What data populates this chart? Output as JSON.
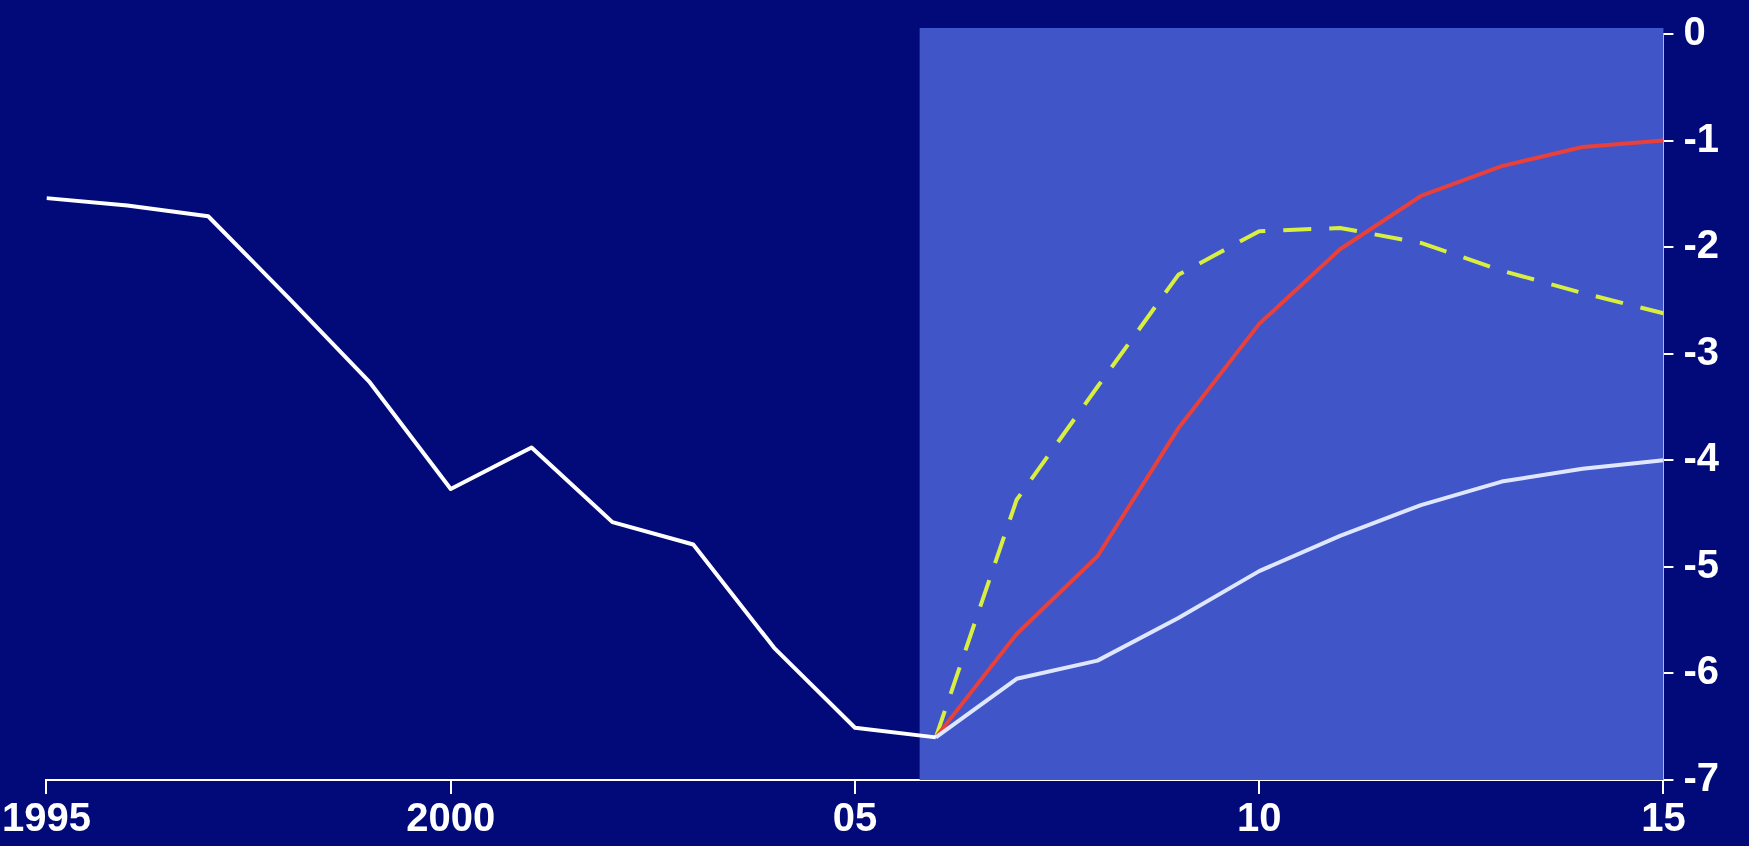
{
  "chart_data": {
    "type": "line",
    "series": [
      {
        "color": "#ffffff",
        "x": [
          1995,
          1996,
          1997,
          1998,
          1999,
          2000,
          2001,
          2002,
          2003,
          2004,
          2005,
          2006
        ],
        "values": [
          -1.54,
          -1.61,
          -1.71,
          -2.48,
          -3.27,
          -4.27,
          -3.88,
          -4.58,
          -4.79,
          -5.76,
          -6.51,
          -6.6
        ]
      },
      {
        "color": "#dfe6ff",
        "x": [
          2006,
          2007,
          2008,
          2009,
          2010,
          2011,
          2012,
          2013,
          2014,
          2015
        ],
        "values": [
          -6.6,
          -6.05,
          -5.88,
          -5.48,
          -5.04,
          -4.71,
          -4.42,
          -4.2,
          -4.08,
          -4.0
        ]
      },
      {
        "color": "#e8403a",
        "x": [
          2006,
          2007,
          2008,
          2009,
          2010,
          2011,
          2012,
          2013,
          2014,
          2015
        ],
        "values": [
          -6.6,
          -5.63,
          -4.9,
          -3.7,
          -2.72,
          -2.02,
          -1.52,
          -1.24,
          -1.06,
          -1.0
        ]
      },
      {
        "color": "#d8ee40",
        "line_style": "dashed",
        "x": [
          2006,
          2007,
          2008,
          2009,
          2010,
          2011,
          2012,
          2013,
          2014,
          2015
        ],
        "values": [
          -6.6,
          -4.37,
          -3.31,
          -2.26,
          -1.85,
          -1.82,
          -1.96,
          -2.22,
          -2.43,
          -2.62
        ]
      }
    ],
    "xlim": [
      1995,
      2015
    ],
    "xticks": [
      1995,
      2000,
      {
        "value": 2005,
        "label": "05"
      },
      {
        "value": 2010,
        "label": "10"
      },
      {
        "value": 2015,
        "label": "15"
      }
    ],
    "ylim": [
      -7,
      0
    ],
    "yticks": [
      0,
      -1,
      -2,
      -3,
      -4,
      -5,
      -6,
      -7
    ],
    "bands": [
      {
        "axis": "x",
        "from": 2005.8,
        "to": 2015,
        "color": "#3f55c8"
      }
    ],
    "grid": false,
    "legend": false,
    "marker": "none",
    "line_style": "solid"
  }
}
